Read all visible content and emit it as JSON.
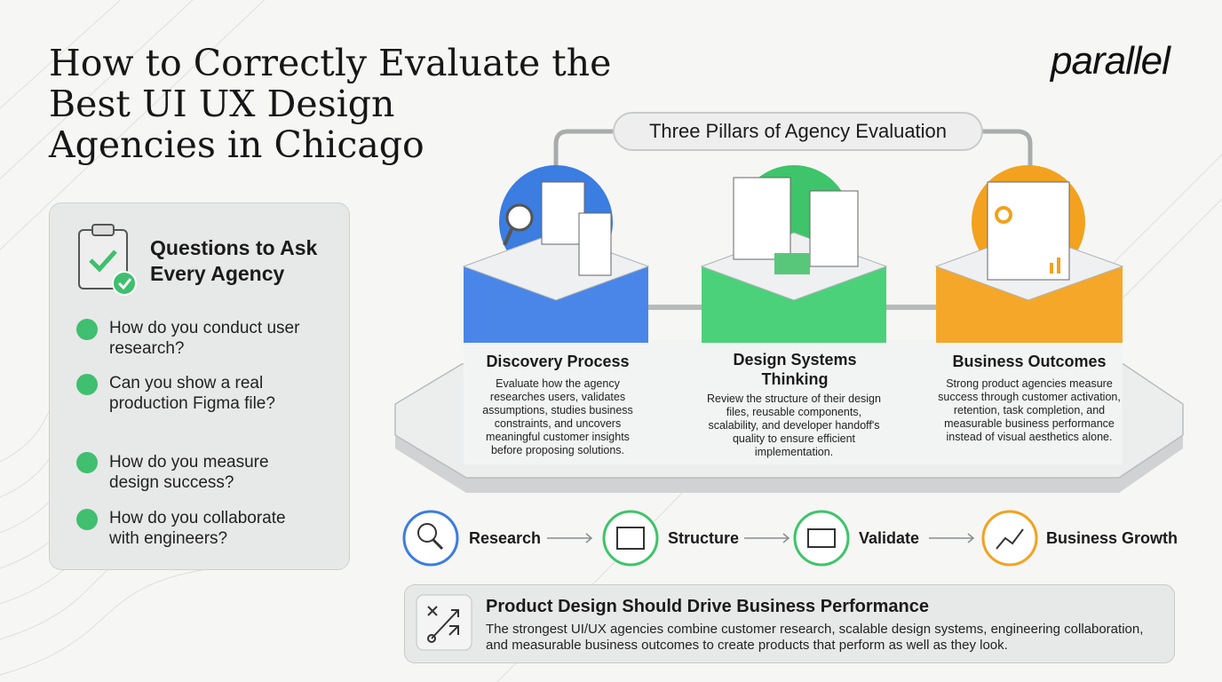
{
  "header": {
    "title_lines": [
      "How to Correctly Evaluate the",
      "Best UI UX Design",
      "Agencies in Chicago"
    ],
    "logo": "parallel"
  },
  "questions": {
    "title": "Questions to Ask Every Agency",
    "items": [
      "How do you conduct user research?",
      "Can you show a real production Figma file?",
      "How do you measure design success?",
      "How do you collaborate with engineers?"
    ]
  },
  "pillars": {
    "title": "Three Pillars of Agency Evaluation",
    "items": [
      {
        "title": "Discovery Process",
        "text": "Evaluate how the agency researches users, validates assumptions, studies business constraints, and uncovers meaningful customer insights before proposing solutions."
      },
      {
        "title": "Design Systems Thinking",
        "text": "Review the structure of their design files, reusable components, scalability, and developer handoff's quality to ensure efficient implementation."
      },
      {
        "title": "Business Outcomes",
        "text": "Strong product agencies measure success through customer activation, retention, task completion, and measurable business performance instead of visual aesthetics alone."
      }
    ]
  },
  "flow": {
    "steps": [
      "Research",
      "Structure",
      "Validate",
      "Business Growth"
    ]
  },
  "footer": {
    "title": "Product Design Should Drive Business Performance",
    "text": "The strongest UI/UX agencies combine customer research, scalable design systems, engineering collaboration, and measurable business outcomes to create products that perform as well as they look."
  }
}
